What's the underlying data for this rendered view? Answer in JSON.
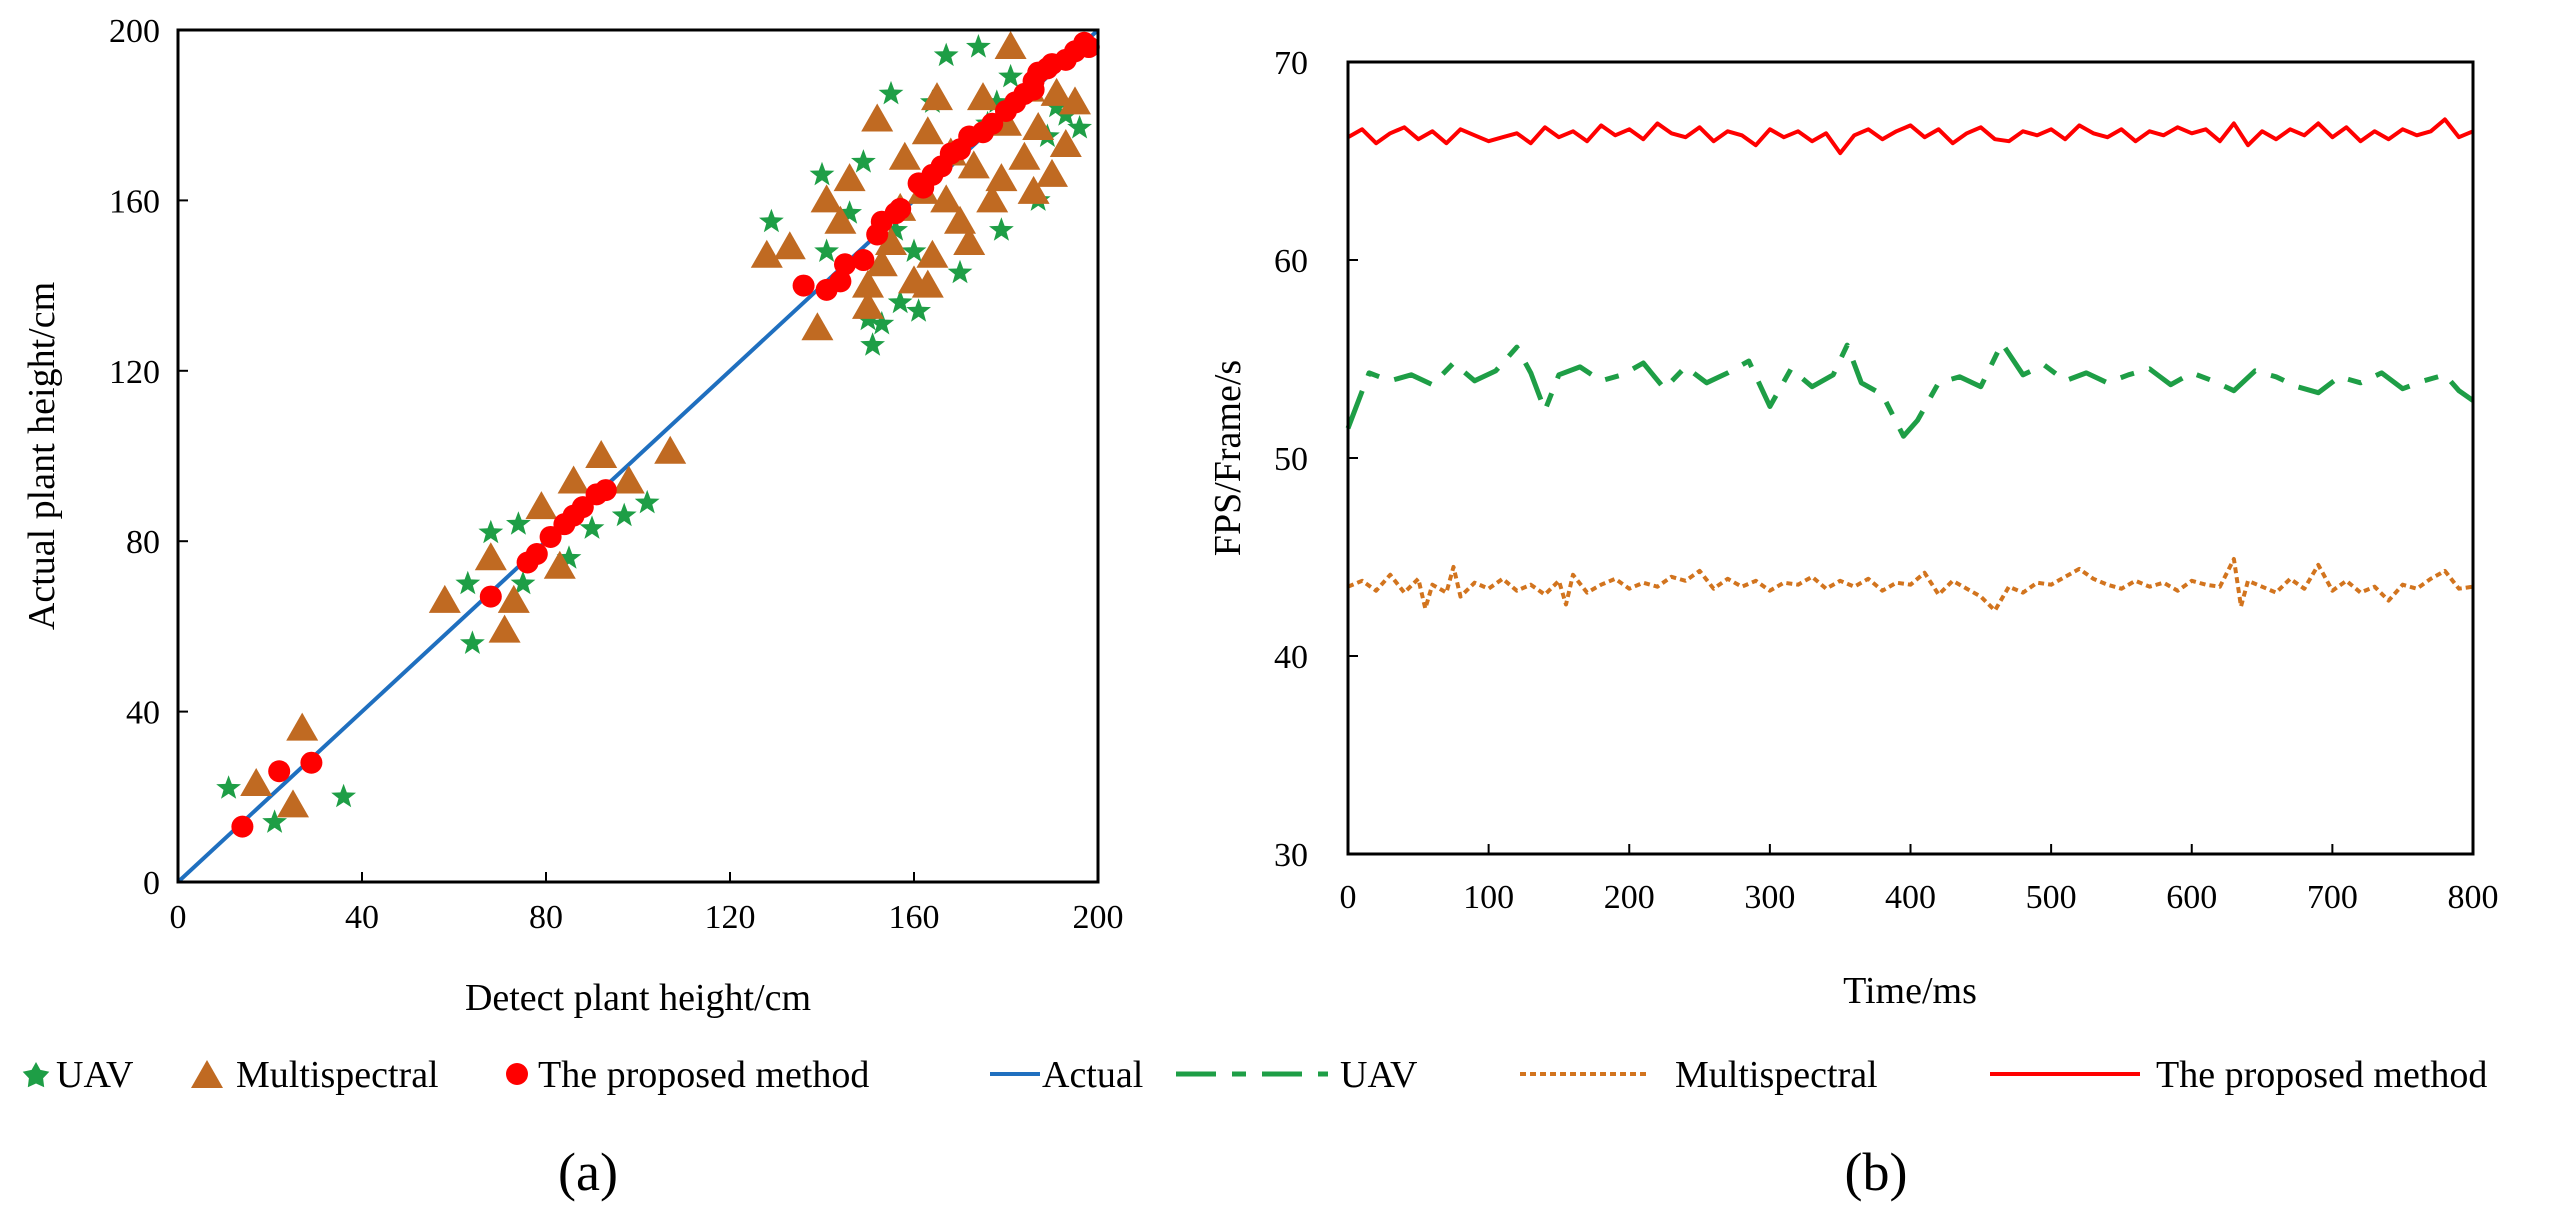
{
  "chart_data": [
    {
      "panel": "(a)",
      "type": "scatter",
      "xlabel": "Detect plant height/cm",
      "ylabel": "Actual plant height/cm",
      "xlim": [
        0,
        200
      ],
      "ylim": [
        0,
        200
      ],
      "xticks": [
        0,
        40,
        80,
        120,
        160,
        200
      ],
      "yticks": [
        0,
        40,
        80,
        120,
        160,
        200
      ],
      "colors": {
        "UAV": "#1e9e46",
        "Multispectral": "#c06a22",
        "The proposed method": "#ff0000",
        "Actual": "#1f6fbf"
      },
      "series": [
        {
          "name": "UAV",
          "marker": "star",
          "points": [
            [
              11,
              22
            ],
            [
              21,
              14
            ],
            [
              36,
              20
            ],
            [
              63,
              70
            ],
            [
              64,
              56
            ],
            [
              68,
              82
            ],
            [
              74,
              84
            ],
            [
              75,
              70
            ],
            [
              85,
              76
            ],
            [
              90,
              83
            ],
            [
              97,
              86
            ],
            [
              102,
              89
            ],
            [
              129,
              155
            ],
            [
              140,
              166
            ],
            [
              141,
              148
            ],
            [
              146,
              157
            ],
            [
              149,
              169
            ],
            [
              150,
              132
            ],
            [
              151,
              126
            ],
            [
              153,
              131
            ],
            [
              155,
              185
            ],
            [
              156,
              153
            ],
            [
              157,
              136
            ],
            [
              161,
              134
            ],
            [
              164,
              183
            ],
            [
              167,
              194
            ],
            [
              170,
              143
            ],
            [
              174,
              196
            ],
            [
              176,
              178
            ],
            [
              178,
              183
            ],
            [
              179,
              153
            ],
            [
              181,
              189
            ],
            [
              187,
              160
            ],
            [
              189,
              175
            ],
            [
              191,
              182
            ],
            [
              193,
              180
            ],
            [
              196,
              177
            ],
            [
              160,
              148
            ]
          ]
        },
        {
          "name": "Multispectral",
          "marker": "triangle",
          "points": [
            [
              17,
              23
            ],
            [
              25,
              18
            ],
            [
              27,
              36
            ],
            [
              58,
              66
            ],
            [
              68,
              76
            ],
            [
              71,
              59
            ],
            [
              73,
              66
            ],
            [
              79,
              88
            ],
            [
              83,
              74
            ],
            [
              86,
              94
            ],
            [
              92,
              100
            ],
            [
              98,
              94
            ],
            [
              107,
              101
            ],
            [
              128,
              147
            ],
            [
              133,
              149
            ],
            [
              139,
              130
            ],
            [
              141,
              160
            ],
            [
              144,
              155
            ],
            [
              146,
              165
            ],
            [
              150,
              135
            ],
            [
              150,
              140
            ],
            [
              152,
              179
            ],
            [
              153,
              145
            ],
            [
              155,
              150
            ],
            [
              157,
              158
            ],
            [
              158,
              170
            ],
            [
              160,
              141
            ],
            [
              162,
              162
            ],
            [
              163,
              176
            ],
            [
              164,
              147
            ],
            [
              165,
              184
            ],
            [
              167,
              160
            ],
            [
              168,
              171
            ],
            [
              170,
              155
            ],
            [
              172,
              150
            ],
            [
              173,
              168
            ],
            [
              175,
              184
            ],
            [
              177,
              160
            ],
            [
              179,
              165
            ],
            [
              180,
              178
            ],
            [
              181,
              196
            ],
            [
              184,
              170
            ],
            [
              185,
              186
            ],
            [
              187,
              177
            ],
            [
              190,
              166
            ],
            [
              191,
              185
            ],
            [
              193,
              173
            ],
            [
              195,
              183
            ],
            [
              163,
              140
            ],
            [
              186,
              162
            ]
          ]
        },
        {
          "name": "The proposed method",
          "marker": "circle",
          "points": [
            [
              14,
              13
            ],
            [
              22,
              26
            ],
            [
              29,
              28
            ],
            [
              68,
              67
            ],
            [
              76,
              75
            ],
            [
              78,
              77
            ],
            [
              81,
              81
            ],
            [
              84,
              84
            ],
            [
              86,
              86
            ],
            [
              88,
              88
            ],
            [
              91,
              91
            ],
            [
              93,
              92
            ],
            [
              136,
              140
            ],
            [
              141,
              139
            ],
            [
              144,
              141
            ],
            [
              145,
              145
            ],
            [
              149,
              146
            ],
            [
              152,
              152
            ],
            [
              153,
              155
            ],
            [
              156,
              157
            ],
            [
              157,
              158
            ],
            [
              161,
              164
            ],
            [
              162,
              163
            ],
            [
              164,
              166
            ],
            [
              166,
              168
            ],
            [
              168,
              171
            ],
            [
              170,
              172
            ],
            [
              172,
              175
            ],
            [
              175,
              176
            ],
            [
              177,
              178
            ],
            [
              180,
              181
            ],
            [
              182,
              183
            ],
            [
              184,
              185
            ],
            [
              186,
              188
            ],
            [
              187,
              190
            ],
            [
              189,
              191
            ],
            [
              190,
              192
            ],
            [
              193,
              193
            ],
            [
              195,
              195
            ],
            [
              197,
              197
            ],
            [
              198,
              196
            ],
            [
              186,
              186
            ]
          ]
        },
        {
          "name": "Actual",
          "marker": "line",
          "points": [
            [
              0,
              0
            ],
            [
              200,
              200
            ]
          ]
        }
      ]
    },
    {
      "panel": "(b)",
      "type": "line",
      "xlabel": "Time/ms",
      "ylabel": "FPS/Frame/s",
      "xlim": [
        0,
        800
      ],
      "ylim": [
        30,
        70
      ],
      "xticks": [
        0,
        100,
        200,
        300,
        400,
        500,
        600,
        700,
        800
      ],
      "yticks": [
        30,
        40,
        50,
        60,
        70
      ],
      "colors": {
        "UAV": "#1e9e46",
        "Multispectral": "#d2741e",
        "The proposed method": "#ff0000"
      },
      "series": [
        {
          "name": "UAV",
          "style": "dash-dot",
          "x": [
            0,
            15,
            30,
            45,
            60,
            75,
            90,
            105,
            120,
            130,
            140,
            150,
            165,
            180,
            195,
            210,
            225,
            240,
            255,
            270,
            285,
            300,
            315,
            330,
            345,
            355,
            365,
            380,
            395,
            405,
            420,
            435,
            450,
            465,
            480,
            495,
            510,
            525,
            540,
            555,
            570,
            585,
            600,
            615,
            630,
            645,
            660,
            675,
            690,
            705,
            720,
            735,
            750,
            765,
            780,
            790,
            800
          ],
          "y": [
            51.5,
            54.3,
            53.9,
            54.2,
            53.7,
            54.8,
            53.9,
            54.4,
            55.6,
            54.3,
            52.4,
            54.2,
            54.6,
            53.9,
            54.2,
            54.8,
            53.5,
            54.6,
            53.8,
            54.3,
            54.9,
            52.6,
            54.5,
            53.6,
            54.2,
            55.7,
            53.8,
            53.2,
            51.1,
            51.9,
            53.8,
            54.1,
            53.6,
            55.8,
            54.2,
            54.7,
            53.9,
            54.3,
            53.8,
            54.2,
            54.5,
            53.7,
            54.3,
            53.9,
            53.4,
            54.4,
            54.1,
            53.6,
            53.3,
            54.1,
            53.8,
            54.3,
            53.5,
            53.9,
            54.2,
            53.4,
            52.9
          ]
        },
        {
          "name": "Multispectral",
          "style": "dotted",
          "x": [
            0,
            10,
            20,
            30,
            40,
            50,
            55,
            60,
            70,
            75,
            80,
            90,
            100,
            110,
            120,
            130,
            140,
            150,
            155,
            160,
            170,
            180,
            190,
            200,
            210,
            220,
            230,
            240,
            250,
            260,
            270,
            280,
            290,
            300,
            310,
            320,
            330,
            340,
            350,
            360,
            370,
            380,
            390,
            400,
            410,
            420,
            430,
            440,
            450,
            460,
            470,
            480,
            490,
            500,
            510,
            520,
            530,
            540,
            550,
            560,
            570,
            580,
            590,
            600,
            610,
            620,
            630,
            635,
            640,
            650,
            660,
            670,
            680,
            690,
            700,
            710,
            720,
            730,
            740,
            750,
            760,
            770,
            780,
            790,
            800
          ],
          "y": [
            43.5,
            43.8,
            43.3,
            44.1,
            43.2,
            43.9,
            42.4,
            43.6,
            43.2,
            44.5,
            43.0,
            43.7,
            43.4,
            43.9,
            43.3,
            43.6,
            43.1,
            43.8,
            42.6,
            44.1,
            43.2,
            43.6,
            43.9,
            43.4,
            43.7,
            43.5,
            44.0,
            43.8,
            44.3,
            43.4,
            43.9,
            43.5,
            43.8,
            43.3,
            43.7,
            43.6,
            44.0,
            43.4,
            43.8,
            43.5,
            43.9,
            43.3,
            43.7,
            43.6,
            44.2,
            43.1,
            43.8,
            43.4,
            43.0,
            42.3,
            43.5,
            43.2,
            43.7,
            43.6,
            44.0,
            44.4,
            43.9,
            43.6,
            43.4,
            43.8,
            43.5,
            43.7,
            43.3,
            43.8,
            43.6,
            43.5,
            44.9,
            42.5,
            43.8,
            43.5,
            43.2,
            43.9,
            43.4,
            44.6,
            43.3,
            43.8,
            43.2,
            43.5,
            42.8,
            43.6,
            43.4,
            43.9,
            44.3,
            43.4,
            43.5
          ]
        },
        {
          "name": "The proposed method",
          "style": "solid",
          "x": [
            0,
            10,
            20,
            30,
            40,
            50,
            60,
            70,
            80,
            90,
            100,
            110,
            120,
            130,
            140,
            150,
            160,
            170,
            180,
            190,
            200,
            210,
            220,
            230,
            240,
            250,
            260,
            270,
            280,
            290,
            300,
            310,
            320,
            330,
            340,
            350,
            360,
            370,
            380,
            390,
            400,
            410,
            420,
            430,
            440,
            450,
            460,
            470,
            480,
            490,
            500,
            510,
            520,
            530,
            540,
            550,
            560,
            570,
            580,
            590,
            600,
            610,
            620,
            630,
            640,
            650,
            660,
            670,
            680,
            690,
            700,
            710,
            720,
            730,
            740,
            750,
            760,
            770,
            780,
            790,
            800
          ],
          "y": [
            66.2,
            66.6,
            65.9,
            66.4,
            66.7,
            66.1,
            66.5,
            65.9,
            66.6,
            66.3,
            66.0,
            66.2,
            66.4,
            65.9,
            66.7,
            66.2,
            66.5,
            66.0,
            66.8,
            66.3,
            66.6,
            66.1,
            66.9,
            66.4,
            66.2,
            66.7,
            66.0,
            66.5,
            66.3,
            65.8,
            66.6,
            66.2,
            66.5,
            66.0,
            66.4,
            65.4,
            66.3,
            66.6,
            66.1,
            66.5,
            66.8,
            66.2,
            66.6,
            65.9,
            66.4,
            66.7,
            66.1,
            66.0,
            66.5,
            66.3,
            66.6,
            66.1,
            66.8,
            66.4,
            66.2,
            66.6,
            66.0,
            66.5,
            66.3,
            66.7,
            66.4,
            66.6,
            66.0,
            66.9,
            65.8,
            66.5,
            66.1,
            66.6,
            66.3,
            66.9,
            66.2,
            66.7,
            66.0,
            66.5,
            66.1,
            66.6,
            66.3,
            66.5,
            67.1,
            66.2,
            66.5
          ]
        }
      ]
    }
  ],
  "legend": {
    "uav_a": "UAV",
    "ms_a": "Multispectral",
    "prop_a": "The proposed method",
    "actual": "Actual",
    "uav_b": "UAV",
    "ms_b": "Multispectral",
    "prop_b": "The proposed method"
  },
  "panels": {
    "a": "(a)",
    "b": "(b)"
  }
}
